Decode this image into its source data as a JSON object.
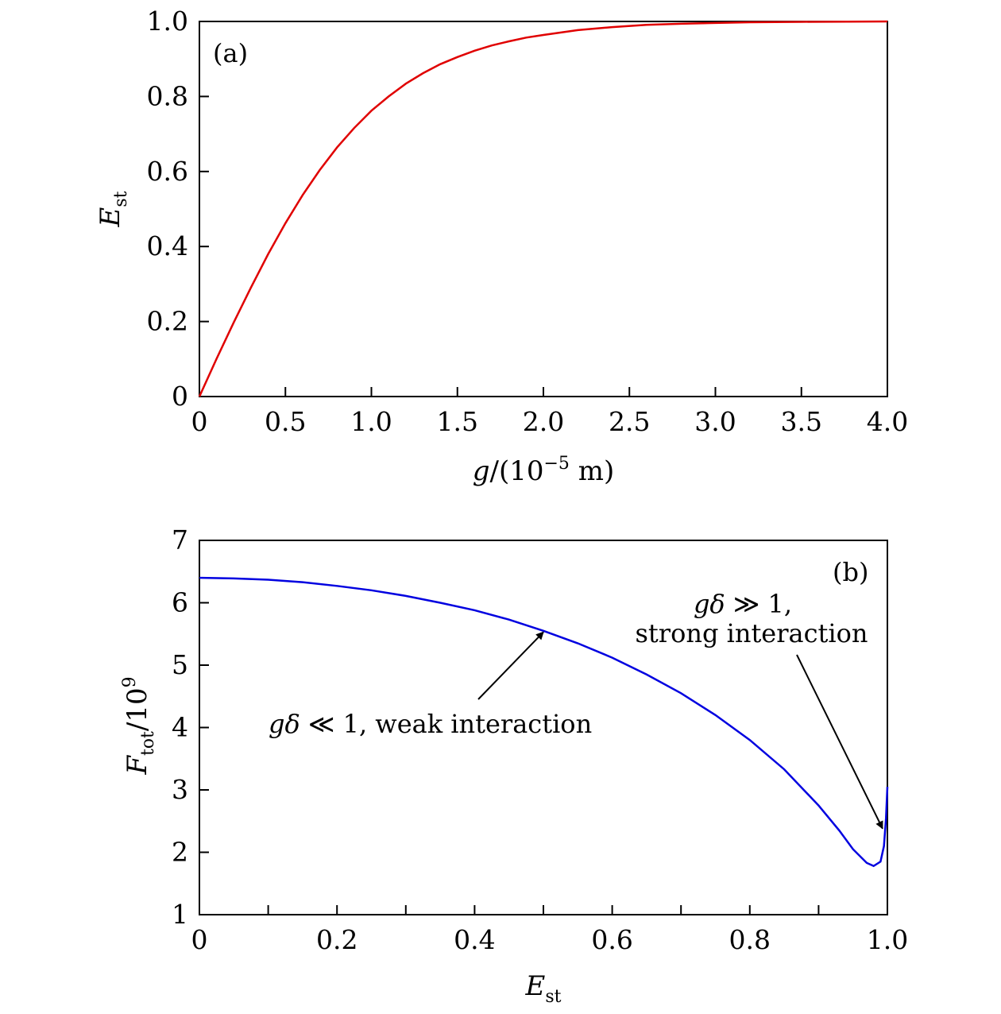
{
  "chart_data": [
    {
      "type": "line",
      "panel_label": "(a)",
      "xlabel": {
        "main": "g",
        "rest": "/(10",
        "sup": "−5",
        "unit": " m)"
      },
      "ylabel": {
        "main": "E",
        "sub": "st"
      },
      "xlim": [
        0,
        4.0
      ],
      "ylim": [
        0,
        1.0
      ],
      "xticks": [
        "0",
        "0.5",
        "1.0",
        "1.5",
        "2.0",
        "2.5",
        "3.0",
        "3.5",
        "4.0"
      ],
      "yticks": [
        "0",
        "0.2",
        "0.4",
        "0.6",
        "0.8",
        "1.0"
      ],
      "grid": false,
      "series": [
        {
          "color": "#e00000",
          "x": [
            0,
            0.1,
            0.2,
            0.3,
            0.4,
            0.5,
            0.6,
            0.7,
            0.8,
            0.9,
            1.0,
            1.1,
            1.2,
            1.3,
            1.4,
            1.5,
            1.6,
            1.7,
            1.8,
            1.9,
            2.0,
            2.2,
            2.4,
            2.6,
            2.8,
            3.0,
            3.2,
            3.5,
            4.0
          ],
          "y": [
            0,
            0.101,
            0.198,
            0.291,
            0.38,
            0.462,
            0.537,
            0.604,
            0.664,
            0.716,
            0.762,
            0.8,
            0.834,
            0.862,
            0.886,
            0.905,
            0.922,
            0.936,
            0.947,
            0.957,
            0.964,
            0.977,
            0.985,
            0.991,
            0.994,
            0.996,
            0.998,
            0.999,
            1.0
          ]
        }
      ]
    },
    {
      "type": "line",
      "panel_label": "(b)",
      "xlabel": {
        "main": "E",
        "sub": "st"
      },
      "ylabel": {
        "main": "F",
        "sub": "tot",
        "rest": "/10",
        "sup": "9"
      },
      "xlim": [
        0,
        1.0
      ],
      "ylim": [
        1,
        7
      ],
      "xticks": [
        "0",
        "0.2",
        "0.4",
        "0.6",
        "0.8",
        "1.0"
      ],
      "yticks": [
        "1",
        "2",
        "3",
        "4",
        "5",
        "6",
        "7"
      ],
      "grid": false,
      "series": [
        {
          "color": "#0000e0",
          "x": [
            0,
            0.05,
            0.1,
            0.15,
            0.2,
            0.25,
            0.3,
            0.35,
            0.4,
            0.45,
            0.5,
            0.55,
            0.6,
            0.65,
            0.7,
            0.75,
            0.8,
            0.85,
            0.9,
            0.93,
            0.95,
            0.97,
            0.98,
            0.99,
            0.995,
            0.998,
            1.0
          ],
          "y": [
            6.4,
            6.39,
            6.37,
            6.33,
            6.27,
            6.2,
            6.11,
            6.0,
            5.88,
            5.73,
            5.55,
            5.35,
            5.12,
            4.85,
            4.55,
            4.2,
            3.8,
            3.33,
            2.75,
            2.35,
            2.05,
            1.83,
            1.78,
            1.85,
            2.1,
            2.55,
            3.05
          ]
        }
      ],
      "annotations": [
        {
          "id": "weak",
          "text_main": "gδ",
          "text_rest": " ≪ 1, weak interaction",
          "arrow_to": [
            0.5,
            5.53
          ]
        },
        {
          "id": "strong",
          "line1_main": "gδ",
          "line1_rest": " ≫ 1,",
          "line2": "strong interaction",
          "arrow_to": [
            0.993,
            2.38
          ]
        }
      ]
    }
  ]
}
